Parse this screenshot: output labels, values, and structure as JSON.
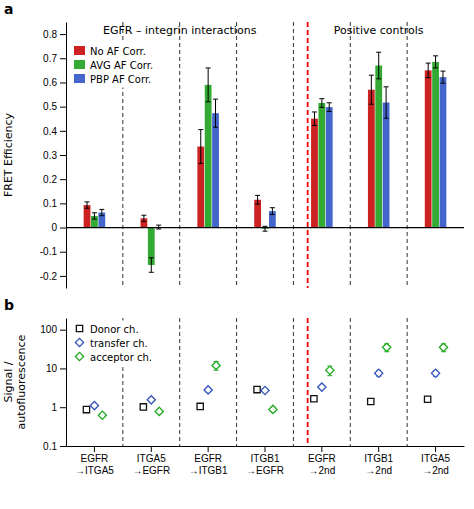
{
  "chart_data": [
    {
      "type": "bar",
      "title": "a",
      "annotations": [
        "EGFR – integrin interactions",
        "Positive controls"
      ],
      "ylabel": "FRET Efficiency",
      "categories": [
        null,
        null,
        null,
        null,
        null,
        null,
        null
      ],
      "series": [
        {
          "name": "No AF Corr.",
          "color": "#cc2222",
          "values": [
            0.093,
            0.038,
            0.335,
            0.115,
            0.45,
            0.57,
            0.65
          ],
          "errors": [
            0.013,
            0.013,
            0.07,
            0.018,
            0.028,
            0.06,
            0.03
          ]
        },
        {
          "name": "AVG AF Corr.",
          "color": "#33aa33",
          "values": [
            0.048,
            -0.155,
            0.59,
            -0.005,
            0.515,
            0.67,
            0.685
          ],
          "errors": [
            0.013,
            0.03,
            0.07,
            0.01,
            0.018,
            0.055,
            0.025
          ]
        },
        {
          "name": "PBP AF Corr.",
          "color": "#4466cc",
          "values": [
            0.062,
            0.002,
            0.473,
            0.068,
            0.498,
            0.517,
            0.622
          ],
          "errors": [
            0.013,
            0.008,
            0.058,
            0.014,
            0.018,
            0.065,
            0.025
          ]
        }
      ],
      "ylim": [
        -0.25,
        0.85
      ],
      "yticks": [
        -0.2,
        -0.1,
        0,
        0.1,
        0.2,
        0.3,
        0.4,
        0.5,
        0.6,
        0.7,
        0.8
      ],
      "legend": "upper left",
      "grid": false,
      "tick_labels": "y"
    },
    {
      "type": "scatter",
      "title": "b",
      "ylabel": "Signal /\nautofluorescence",
      "categories": [
        "EGFR\n→ITGA5",
        "ITGA5\n→EGFR",
        "EGFR\n→ITGB1",
        "ITGB1\n→EGFR",
        "EGFR\n→2nd",
        "ITGB1\n→2nd",
        "ITGA5\n→2nd"
      ],
      "series": [
        {
          "name": "Donor ch.",
          "color": "#111111",
          "marker": "square",
          "values": [
            0.87,
            1.02,
            1.05,
            2.85,
            1.65,
            1.4,
            1.6
          ],
          "errors": [
            0.05,
            0.05,
            0.05,
            0.12,
            0.08,
            0.08,
            0.08
          ]
        },
        {
          "name": "transfer ch.",
          "color": "#3355bb",
          "marker": "diamond",
          "values": [
            1.1,
            1.55,
            2.8,
            2.7,
            3.3,
            7.5,
            7.5
          ],
          "errors": [
            0.12,
            0.12,
            0.35,
            0.18,
            0.25,
            1.2,
            1.2
          ]
        },
        {
          "name": "acceptor ch.",
          "color": "#22aa22",
          "marker": "diamond",
          "values": [
            0.62,
            0.78,
            12.0,
            0.88,
            9.0,
            35.0,
            35.0
          ],
          "errors": [
            0.06,
            0.06,
            3.0,
            0.12,
            2.5,
            8.0,
            8.0
          ]
        }
      ],
      "log": "y",
      "ylim": [
        0.1,
        200
      ],
      "yticks": [
        0.1,
        1,
        10,
        100
      ],
      "legend": "upper left",
      "grid": false
    }
  ]
}
